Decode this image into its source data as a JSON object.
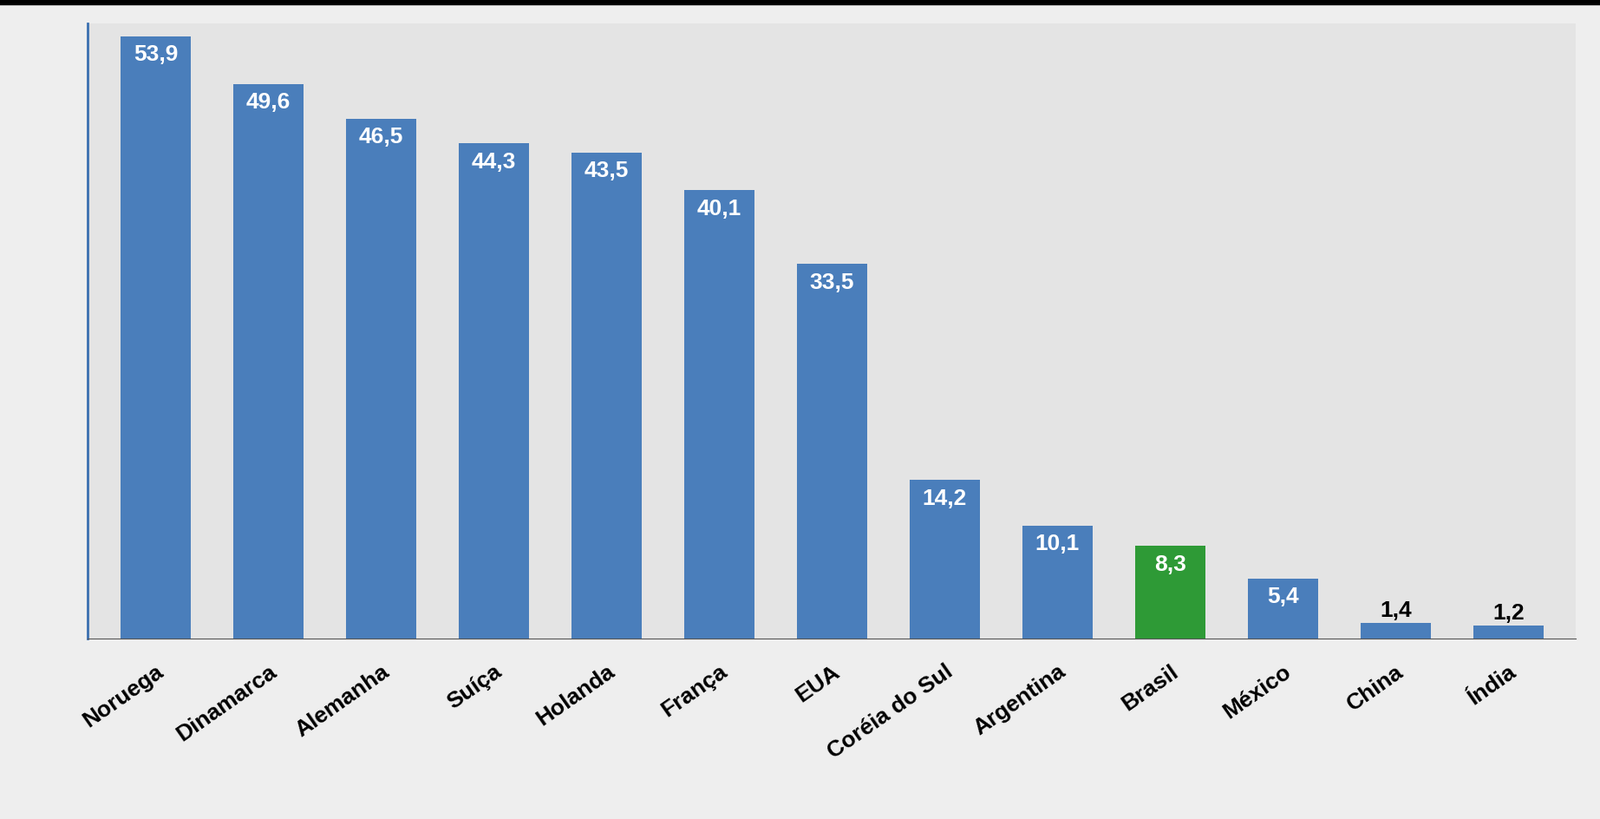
{
  "chart_data": {
    "type": "bar",
    "categories": [
      "Noruega",
      "Dinamarca",
      "Alemanha",
      "Suíça",
      "Holanda",
      "França",
      "EUA",
      "Coréia do Sul",
      "Argentina",
      "Brasil",
      "México",
      "China",
      "Índia"
    ],
    "values": [
      53.9,
      49.6,
      46.5,
      44.3,
      43.5,
      40.1,
      33.5,
      14.2,
      10.1,
      8.3,
      5.4,
      1.4,
      1.2
    ],
    "value_labels": [
      "53,9",
      "49,6",
      "46,5",
      "44,3",
      "43,5",
      "40,1",
      "33,5",
      "14,2",
      "10,1",
      "8,3",
      "5,4",
      "1,4",
      "1,2"
    ],
    "colors": [
      "#4a7ebb",
      "#4a7ebb",
      "#4a7ebb",
      "#4a7ebb",
      "#4a7ebb",
      "#4a7ebb",
      "#4a7ebb",
      "#4a7ebb",
      "#4a7ebb",
      "#2e9a36",
      "#4a7ebb",
      "#4a7ebb",
      "#4a7ebb"
    ],
    "ylim": [
      0,
      55
    ],
    "yticks": [],
    "grid": false,
    "data_labels": true,
    "tick_labels": "x"
  }
}
